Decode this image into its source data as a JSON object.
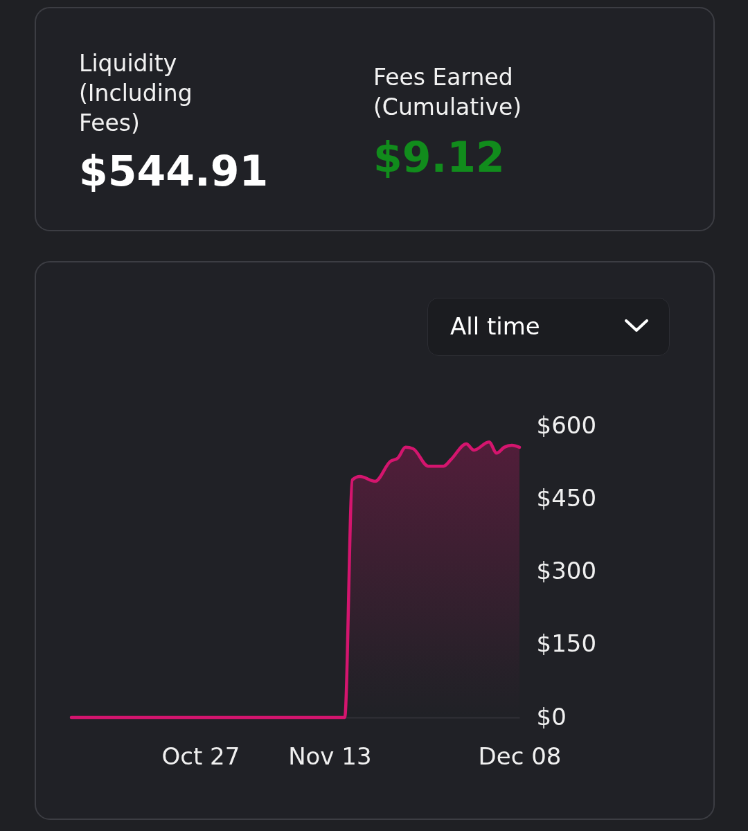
{
  "chart_data": [
    {
      "type": "other",
      "annotations": [
        "Liquidity (Including Fees)",
        "$544.91",
        "Fees Earned (Cumulative)",
        "$9.12"
      ]
    },
    {
      "type": "area",
      "annotations": [
        "All time"
      ],
      "x": [
        "--10-10",
        "--10-20",
        "--10-30",
        "--11-05",
        "--11-15",
        "--11-16",
        "--11-17",
        "--11-19",
        "--11-21",
        "--11-22",
        "--11-23",
        "--11-24",
        "--11-26",
        "--11-28",
        "--11-29",
        "--12-01",
        "--12-02",
        "--12-04",
        "--12-05",
        "--12-06",
        "--12-07",
        "--12-08"
      ],
      "series": [
        {
          "color": "#d4156e",
          "values": [
            0,
            0,
            0,
            0,
            0,
            489,
            496,
            486,
            527,
            534,
            556,
            553,
            517,
            517,
            531,
            563,
            550,
            567,
            544,
            556,
            560,
            556
          ]
        }
      ],
      "xlim": [
        "--10-10",
        "--12-08"
      ],
      "xticks": [
        {
          "value": "--10-27",
          "label": "Oct 27"
        },
        {
          "value": "--11-13",
          "label": "Nov 13"
        },
        {
          "value": "--12-08",
          "label": "Dec 08"
        }
      ],
      "ylim": [
        0,
        600
      ],
      "yticks": [
        {
          "value": 0,
          "label": "$0"
        },
        {
          "value": 150,
          "label": "$150"
        },
        {
          "value": 300,
          "label": "$300"
        },
        {
          "value": 450,
          "label": "$450"
        },
        {
          "value": 600,
          "label": "$600"
        }
      ]
    }
  ]
}
